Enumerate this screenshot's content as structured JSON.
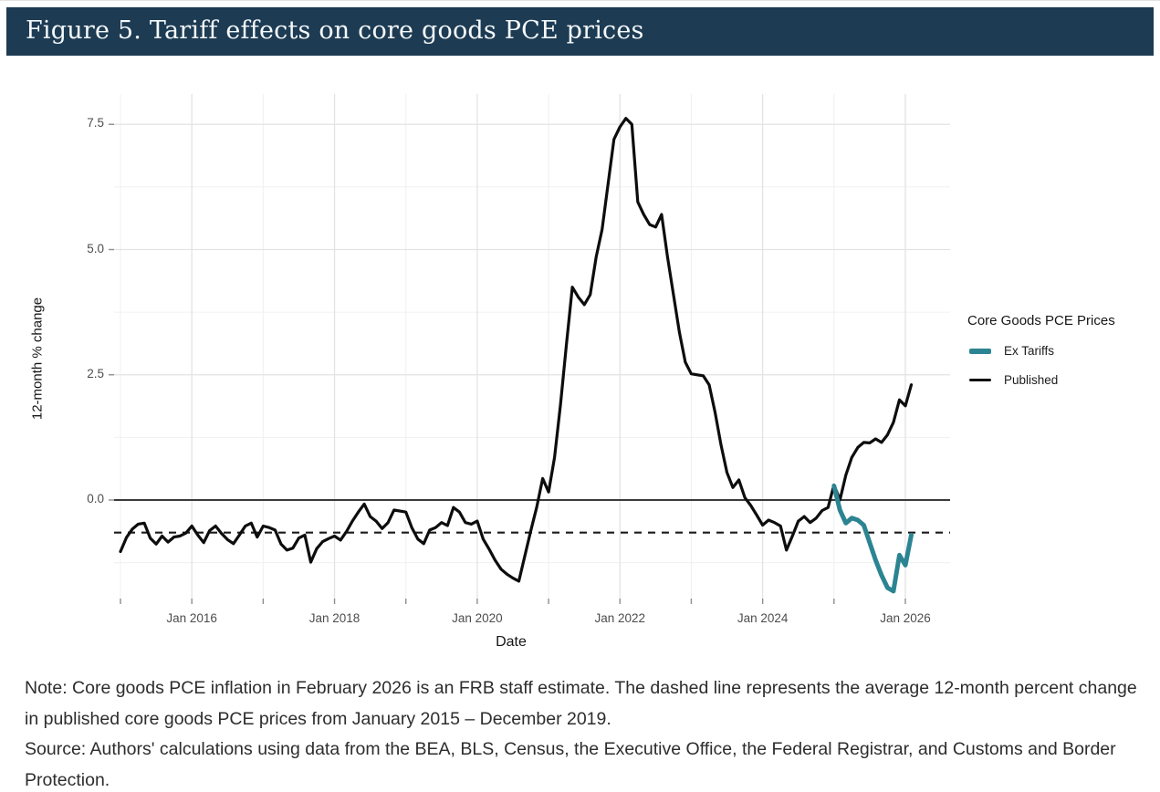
{
  "header": {
    "title": "Figure 5. Tariff effects on core goods PCE prices"
  },
  "chart_data": {
    "type": "line",
    "title": "Figure 5. Tariff effects on core goods PCE prices",
    "xlabel": "Date",
    "ylabel": "12-month % change",
    "x_range": [
      "2015-01",
      "2026-02"
    ],
    "ylim": [
      -1.97,
      8.1
    ],
    "grid": true,
    "x_tick_labels": [
      "Jan 2016",
      "Jan 2018",
      "Jan 2020",
      "Jan 2022",
      "Jan 2024",
      "Jan 2026"
    ],
    "x_tick_years_major": [
      2016,
      2018,
      2020,
      2022,
      2024,
      2026
    ],
    "x_tick_years_minor": [
      2015,
      2017,
      2019,
      2021,
      2023,
      2025
    ],
    "y_tick_labels": [
      "0.0",
      "2.5",
      "5.0",
      "7.5"
    ],
    "y_ticks_major": [
      0,
      2.5,
      5,
      7.5
    ],
    "y_ticks_minor": [
      -1.25,
      1.25,
      3.75,
      6.25
    ],
    "reference_lines": {
      "zero_line": 0.0,
      "dashed_avg_2015_2019": -0.65
    },
    "legend": {
      "title": "Core Goods PCE Prices",
      "position": "right",
      "entries": [
        {
          "label": "Ex Tariffs",
          "color": "#2b8492"
        },
        {
          "label": "Published",
          "color": "#0d0d0d"
        }
      ]
    },
    "series": [
      {
        "name": "Published",
        "color": "#0d0d0d",
        "start_month": "2015-01",
        "values": [
          -1.03,
          -0.75,
          -0.58,
          -0.48,
          -0.46,
          -0.76,
          -0.88,
          -0.72,
          -0.84,
          -0.74,
          -0.72,
          -0.66,
          -0.52,
          -0.7,
          -0.85,
          -0.61,
          -0.52,
          -0.67,
          -0.79,
          -0.87,
          -0.7,
          -0.52,
          -0.46,
          -0.74,
          -0.52,
          -0.55,
          -0.6,
          -0.88,
          -1.0,
          -0.96,
          -0.76,
          -0.7,
          -1.24,
          -0.97,
          -0.83,
          -0.77,
          -0.72,
          -0.8,
          -0.63,
          -0.42,
          -0.24,
          -0.08,
          -0.33,
          -0.42,
          -0.57,
          -0.45,
          -0.2,
          -0.22,
          -0.24,
          -0.55,
          -0.78,
          -0.87,
          -0.6,
          -0.55,
          -0.45,
          -0.51,
          -0.15,
          -0.24,
          -0.45,
          -0.48,
          -0.42,
          -0.78,
          -0.98,
          -1.2,
          -1.38,
          -1.48,
          -1.56,
          -1.62,
          -1.12,
          -0.62,
          -0.15,
          0.43,
          0.16,
          0.85,
          1.9,
          3.1,
          4.25,
          4.05,
          3.9,
          4.1,
          4.85,
          5.4,
          6.3,
          7.2,
          7.45,
          7.62,
          7.5,
          5.95,
          5.7,
          5.5,
          5.45,
          5.7,
          4.85,
          4.1,
          3.35,
          2.75,
          2.52,
          2.5,
          2.48,
          2.3,
          1.75,
          1.1,
          0.55,
          0.25,
          0.4,
          0.05,
          -0.11,
          -0.3,
          -0.5,
          -0.4,
          -0.45,
          -0.52,
          -1.0,
          -0.72,
          -0.42,
          -0.33,
          -0.45,
          -0.36,
          -0.21,
          -0.15,
          0.3,
          0.0,
          0.5,
          0.85,
          1.05,
          1.15,
          1.14,
          1.22,
          1.15,
          1.3,
          1.55,
          2.0,
          1.88,
          2.3
        ]
      },
      {
        "name": "Ex Tariffs",
        "color": "#2b8492",
        "start_month": "2025-01",
        "values": [
          0.28,
          -0.2,
          -0.46,
          -0.36,
          -0.4,
          -0.5,
          -0.85,
          -1.2,
          -1.5,
          -1.75,
          -1.82,
          -1.1,
          -1.3,
          -0.7
        ]
      }
    ]
  },
  "notes": {
    "note": "Note: Core goods PCE inflation in February 2026 is an FRB staff estimate. The dashed line represents the average 12-month percent change in published core goods PCE prices from January 2015 – December 2019.",
    "source": "Source: Authors' calculations using data from the BEA, BLS, Census, the Executive Office, the Federal Registrar, and Customs and Border Protection."
  },
  "colors": {
    "title_bar_bg": "#1d3b53",
    "title_text": "#f4f8fa",
    "accent_teal": "#2b8492",
    "line_black": "#0d0d0d",
    "grid_major": "#e3e3e3",
    "grid_minor": "#f0f0f0"
  }
}
